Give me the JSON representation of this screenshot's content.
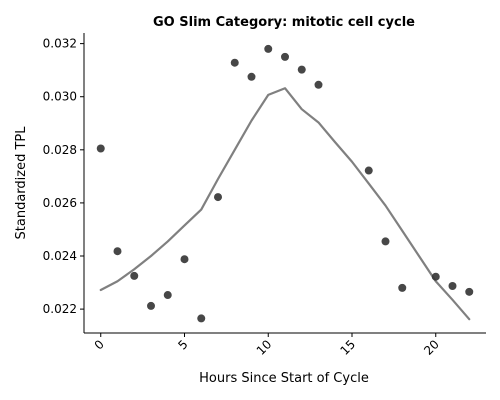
{
  "chart_data": {
    "type": "scatter",
    "title": "GO Slim Category: mitotic cell cycle",
    "xlabel": "Hours Since Start of Cycle",
    "ylabel": "Standardized TPL",
    "xlim": [
      -1,
      23
    ],
    "ylim": [
      0.0211,
      0.0324
    ],
    "x_ticks": [
      0,
      5,
      10,
      15,
      20
    ],
    "x_tick_labels": [
      "0",
      "5",
      "10",
      "15",
      "20"
    ],
    "x_tick_rotation_deg": 45,
    "y_ticks": [
      0.022,
      0.024,
      0.026,
      0.028,
      0.03,
      0.032
    ],
    "y_tick_labels": [
      "0.022",
      "0.024",
      "0.026",
      "0.028",
      "0.030",
      "0.032"
    ],
    "grid": false,
    "legend": false,
    "spines": "left-bottom",
    "series": [
      {
        "kind": "scatter",
        "color": "#333333",
        "x": [
          0,
          1,
          2,
          3,
          4,
          5,
          6,
          7,
          8,
          9,
          10,
          11,
          12,
          13,
          16,
          17,
          18,
          20,
          21,
          22
        ],
        "y": [
          0.02805,
          0.02418,
          0.02325,
          0.02212,
          0.02253,
          0.02388,
          0.02165,
          0.02622,
          0.03128,
          0.03075,
          0.0318,
          0.0315,
          0.03102,
          0.03045,
          0.02722,
          0.02455,
          0.0228,
          0.02322,
          0.02287,
          0.02265
        ]
      },
      {
        "kind": "line",
        "color": "#808080",
        "x": [
          0,
          1,
          2,
          3,
          4,
          5,
          6,
          7,
          8,
          9,
          10,
          11,
          12,
          13,
          14,
          15,
          16,
          17,
          18,
          19,
          20,
          21,
          22
        ],
        "y": [
          0.02272,
          0.02305,
          0.0235,
          0.024,
          0.02455,
          0.02515,
          0.02575,
          0.0269,
          0.028,
          0.0291,
          0.03007,
          0.03032,
          0.02953,
          0.02903,
          0.02828,
          0.02755,
          0.02673,
          0.0259,
          0.02495,
          0.024,
          0.02305,
          0.02235,
          0.02162
        ]
      }
    ]
  }
}
